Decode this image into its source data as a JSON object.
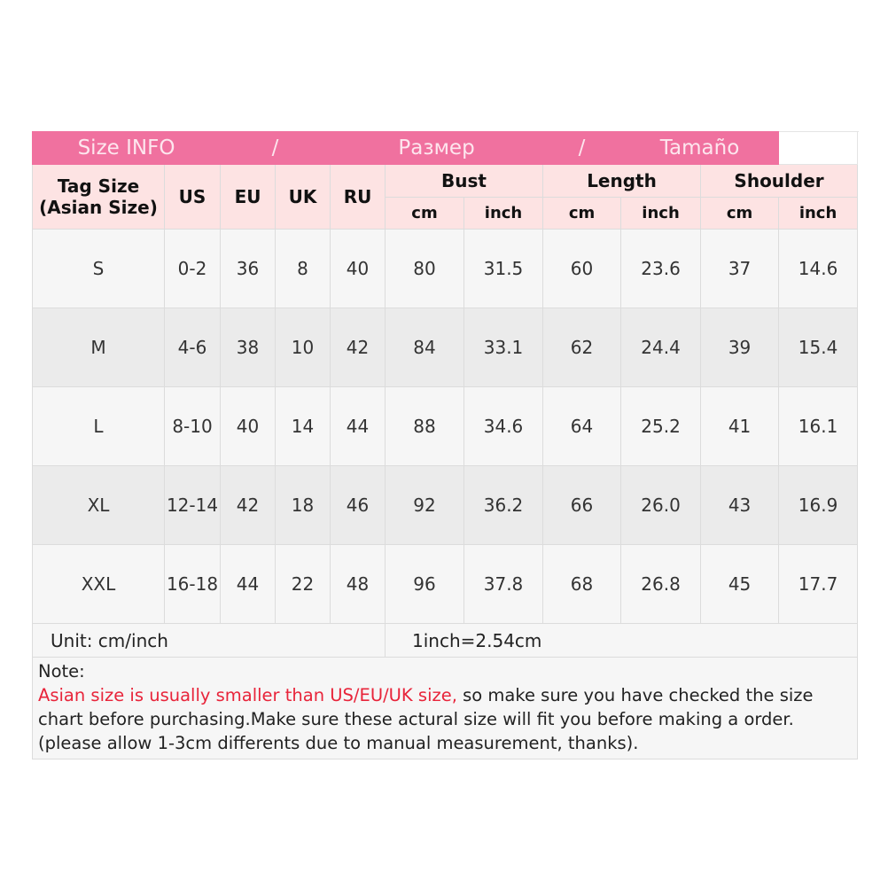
{
  "title": {
    "parts": [
      "Size INFO",
      "/",
      "Размер",
      "/",
      "Tamaño"
    ],
    "color": "#f0719f"
  },
  "header": {
    "tag_size": "Tag Size",
    "asian_size": "(Asian Size)",
    "us": "US",
    "eu": "EU",
    "uk": "UK",
    "ru": "RU",
    "bust": "Bust",
    "length": "Length",
    "shoulder": "Shoulder",
    "cm": "cm",
    "inch": "inch"
  },
  "rows": [
    [
      "S",
      "0-2",
      "36",
      "8",
      "40",
      "80",
      "31.5",
      "60",
      "23.6",
      "37",
      "14.6"
    ],
    [
      "M",
      "4-6",
      "38",
      "10",
      "42",
      "84",
      "33.1",
      "62",
      "24.4",
      "39",
      "15.4"
    ],
    [
      "L",
      "8-10",
      "40",
      "14",
      "44",
      "88",
      "34.6",
      "64",
      "25.2",
      "41",
      "16.1"
    ],
    [
      "XL",
      "12-14",
      "42",
      "18",
      "46",
      "92",
      "36.2",
      "66",
      "26.0",
      "43",
      "16.9"
    ],
    [
      "XXL",
      "16-18",
      "44",
      "22",
      "48",
      "96",
      "37.8",
      "68",
      "26.8",
      "45",
      "17.7"
    ]
  ],
  "unit": "Unit: cm/inch",
  "conversion": "1inch=2.54cm",
  "note": {
    "label": "Note:",
    "warning": "Asian size is usually smaller than US/EU/UK size,",
    "body": " so make sure you have checked the size chart before purchasing.Make sure these actural size will fit you before making a order.(please allow 1-3cm differents due to manual measurement, thanks).",
    "warning_color": "#e8243a"
  }
}
